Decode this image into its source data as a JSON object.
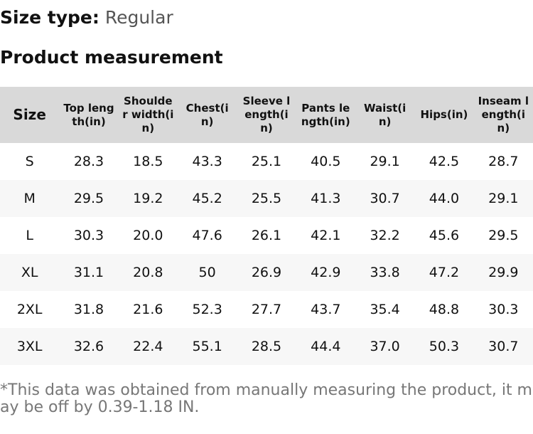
{
  "header": {
    "size_type_label": "Size type:",
    "size_type_value": "Regular",
    "title": "Product measurement"
  },
  "table": {
    "columns": [
      "Size",
      "Top length(in)",
      "Shoulder width(in)",
      "Chest(in)",
      "Sleeve length(in)",
      "Pants length(in)",
      "Waist(in)",
      "Hips(in)",
      "Inseam length(in)"
    ],
    "rows": [
      [
        "S",
        "28.3",
        "18.5",
        "43.3",
        "25.1",
        "40.5",
        "29.1",
        "42.5",
        "28.7"
      ],
      [
        "M",
        "29.5",
        "19.2",
        "45.2",
        "25.5",
        "41.3",
        "30.7",
        "44.0",
        "29.1"
      ],
      [
        "L",
        "30.3",
        "20.0",
        "47.6",
        "26.1",
        "42.1",
        "32.2",
        "45.6",
        "29.5"
      ],
      [
        "XL",
        "31.1",
        "20.8",
        "50",
        "26.9",
        "42.9",
        "33.8",
        "47.2",
        "29.9"
      ],
      [
        "2XL",
        "31.8",
        "21.6",
        "52.3",
        "27.7",
        "43.7",
        "35.4",
        "48.8",
        "30.3"
      ],
      [
        "3XL",
        "32.6",
        "22.4",
        "55.1",
        "28.5",
        "44.4",
        "37.0",
        "50.3",
        "30.7"
      ]
    ]
  },
  "note": "*This data was obtained from manually measuring the product, it may be off by 0.39-1.18 IN."
}
